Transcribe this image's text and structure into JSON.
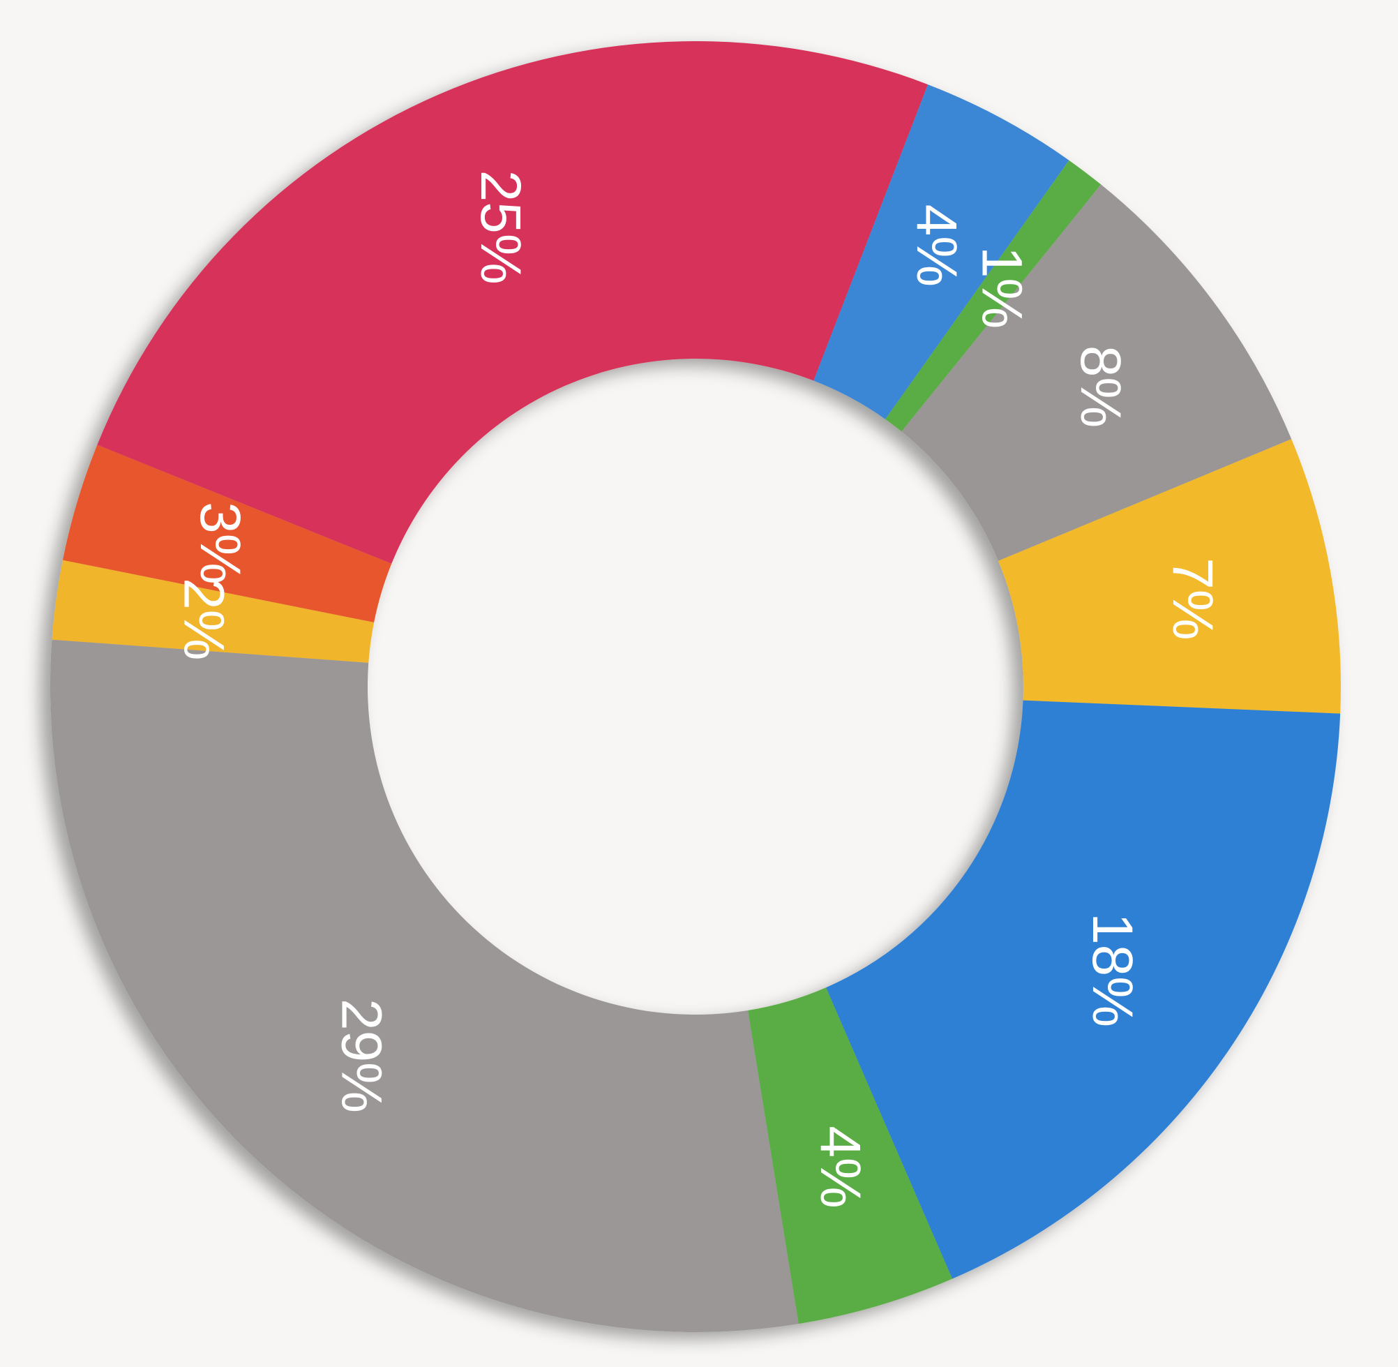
{
  "chart_data": {
    "type": "pie",
    "values": [
      25,
      4,
      1,
      8,
      7,
      18,
      4,
      29,
      2,
      3
    ],
    "value_labels": [
      "25%",
      "4%",
      "1%",
      "8%",
      "7%",
      "18%",
      "4%",
      "29%",
      "2%",
      "3%"
    ],
    "colors": [
      "#d6325a",
      "#3a87d6",
      "#5aad45",
      "#9b9696",
      "#f2b92a",
      "#2f80d4",
      "#5aad45",
      "#9b9797",
      "#f0b52c",
      "#e8562f"
    ]
  }
}
